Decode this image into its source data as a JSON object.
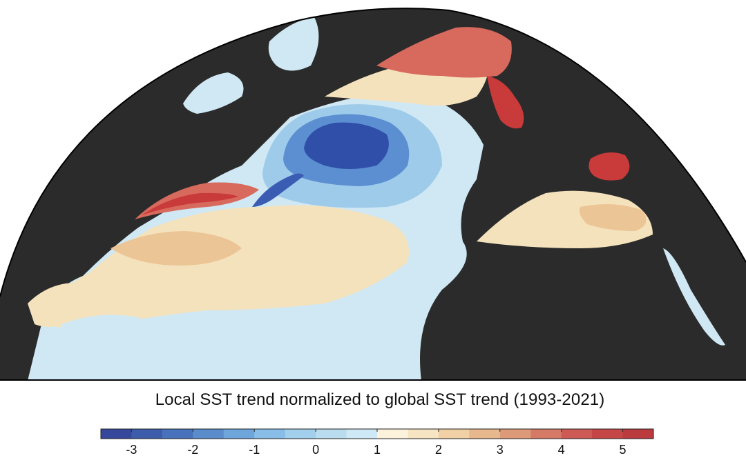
{
  "map": {
    "land_color": "#2b2b2b",
    "outline_color": "#000000",
    "water_colors": {
      "strong_cool": "#2f4fa8",
      "cool": "#5b8fd1",
      "mild_cool": "#9fcbea",
      "neutral": "#cfe8f4",
      "mild_warm": "#f4e2bd",
      "warm": "#ecc596",
      "hot": "#d8695d",
      "very_hot": "#c93a3a"
    }
  },
  "legend": {
    "title": "Local SST trend normalized to global SST trend (1993-2021)",
    "min": -3.5,
    "max": 5.5,
    "step": 0.5,
    "tick_values": [
      -3,
      -2,
      -1,
      0,
      1,
      2,
      3,
      4,
      5
    ],
    "tick_labels": [
      "-3",
      "-2",
      "-1",
      "0",
      "1",
      "2",
      "3",
      "4",
      "5"
    ],
    "colors": [
      "#36489c",
      "#3d5dab",
      "#4872bb",
      "#5a8ccb",
      "#6ea5da",
      "#87bde6",
      "#a2cfeb",
      "#b9dcef",
      "#cfe8f5",
      "#fdf3dc",
      "#f7e4c3",
      "#f0d0a4",
      "#e7b78d",
      "#dd9a79",
      "#d47a67",
      "#cd5a55",
      "#c64546",
      "#bb3a3d"
    ]
  }
}
